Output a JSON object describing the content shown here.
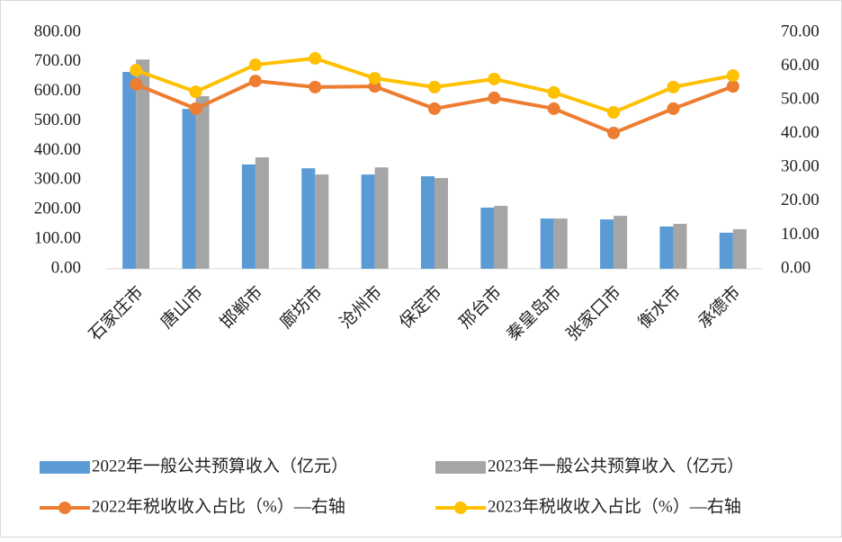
{
  "chart_data": {
    "type": "bar-line",
    "categories": [
      "石家庄市",
      "唐山市",
      "邯郸市",
      "廊坊市",
      "沧州市",
      "保定市",
      "邢台市",
      "秦皇岛市",
      "张家口市",
      "衡水市",
      "承德市"
    ],
    "series": [
      {
        "name": "2022年一般公共预算收入（亿元）",
        "type": "bar",
        "color": "#5b9bd5",
        "values": [
          666,
          541,
          353,
          340,
          319,
          313,
          207,
          170,
          167,
          143,
          122
        ]
      },
      {
        "name": "2023年一般公共预算收入（亿元）",
        "type": "bar",
        "color": "#a5a5a5",
        "values": [
          708,
          584,
          377,
          319,
          343,
          307,
          213,
          170,
          179,
          152,
          134
        ]
      },
      {
        "name": "2022年税收收入占比（%）—右轴",
        "type": "line",
        "axis": "y2",
        "color": "#ed7d31",
        "values": [
          54.6,
          47.4,
          55.6,
          53.8,
          54.0,
          47.4,
          50.6,
          47.4,
          40.2,
          47.4,
          54.0
        ]
      },
      {
        "name": "2023年税收收入占比（%）—右轴",
        "type": "line",
        "axis": "y2",
        "color": "#ffc000",
        "values": [
          58.8,
          52.4,
          60.4,
          62.3,
          56.4,
          53.8,
          56.2,
          52.2,
          46.3,
          53.8,
          57.2
        ]
      }
    ],
    "ylim": [
      0,
      800
    ],
    "yticks": [
      {
        "value": 0,
        "label": "0.00"
      },
      {
        "value": 100,
        "label": "100.00"
      },
      {
        "value": 200,
        "label": "200.00"
      },
      {
        "value": 300,
        "label": "300.00"
      },
      {
        "value": 400,
        "label": "400.00"
      },
      {
        "value": 500,
        "label": "500.00"
      },
      {
        "value": 600,
        "label": "600.00"
      },
      {
        "value": 700,
        "label": "700.00"
      },
      {
        "value": 800,
        "label": "800.00"
      }
    ],
    "y2lim": [
      0,
      70
    ],
    "y2ticks": [
      {
        "value": 0,
        "label": "0.00"
      },
      {
        "value": 10,
        "label": "10.00"
      },
      {
        "value": 20,
        "label": "20.00"
      },
      {
        "value": 30,
        "label": "30.00"
      },
      {
        "value": 40,
        "label": "40.00"
      },
      {
        "value": 50,
        "label": "50.00"
      },
      {
        "value": 60,
        "label": "60.00"
      },
      {
        "value": 70,
        "label": "70.00"
      }
    ],
    "grid": false
  }
}
